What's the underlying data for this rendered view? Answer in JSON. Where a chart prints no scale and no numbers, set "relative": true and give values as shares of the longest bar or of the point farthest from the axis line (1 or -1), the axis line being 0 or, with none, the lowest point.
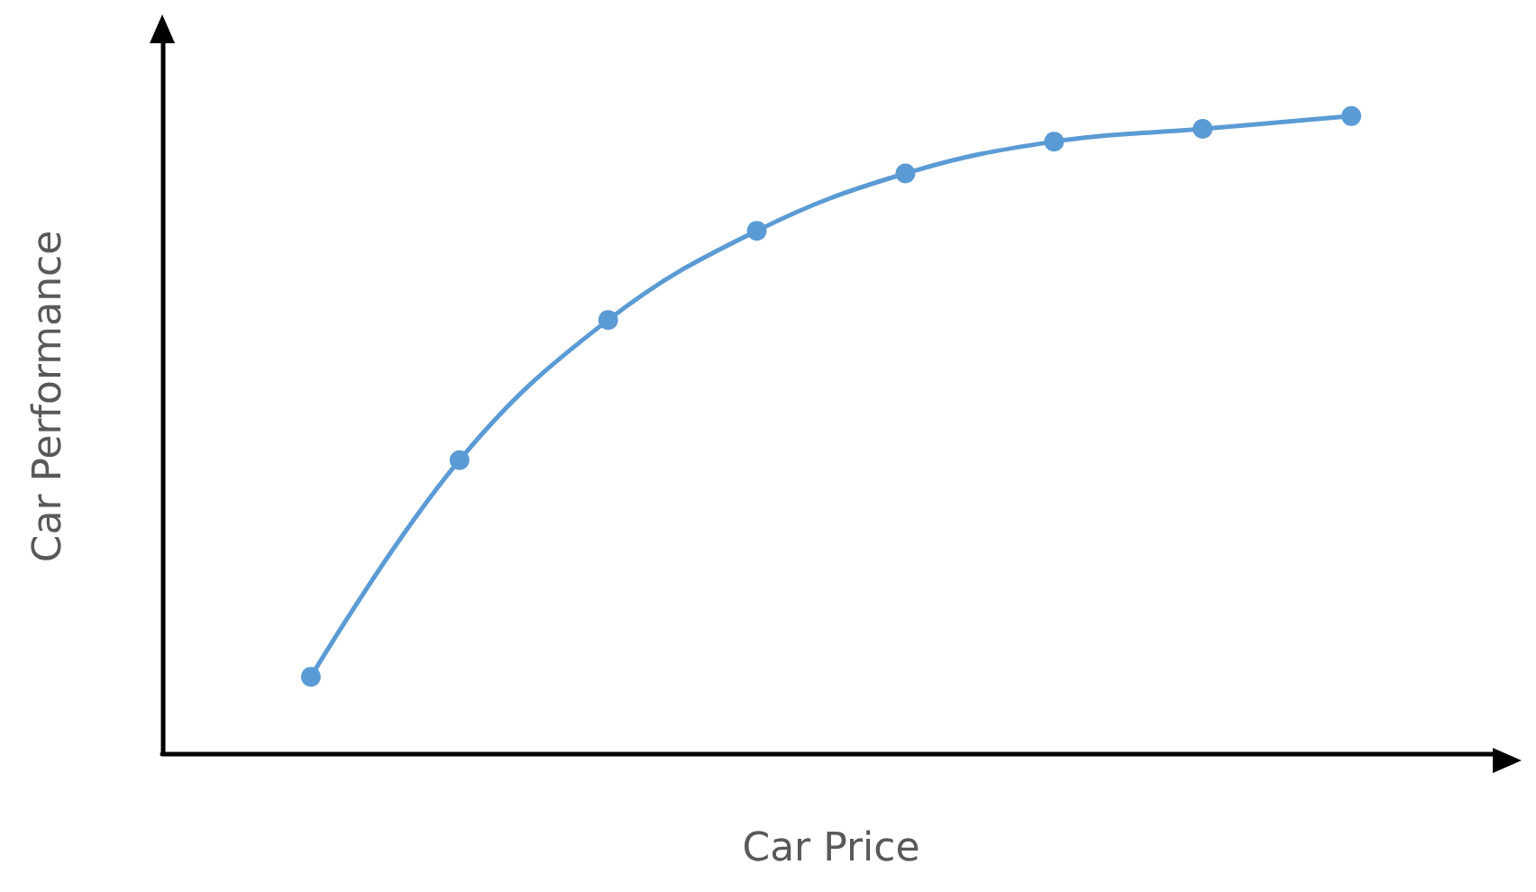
{
  "chart_data": {
    "type": "line",
    "relative": true,
    "xlabel": "Car Price",
    "ylabel": "Car Performance",
    "categories": [
      null,
      null,
      null,
      null,
      null,
      null,
      null,
      null
    ],
    "series": [
      {
        "color": "#5b9bd5",
        "values": [
          0.12,
          0.46,
          0.68,
          0.82,
          0.91,
          0.96,
          0.98,
          1
        ]
      }
    ],
    "marker": "circle",
    "line_style": "solid",
    "grid": false
  }
}
